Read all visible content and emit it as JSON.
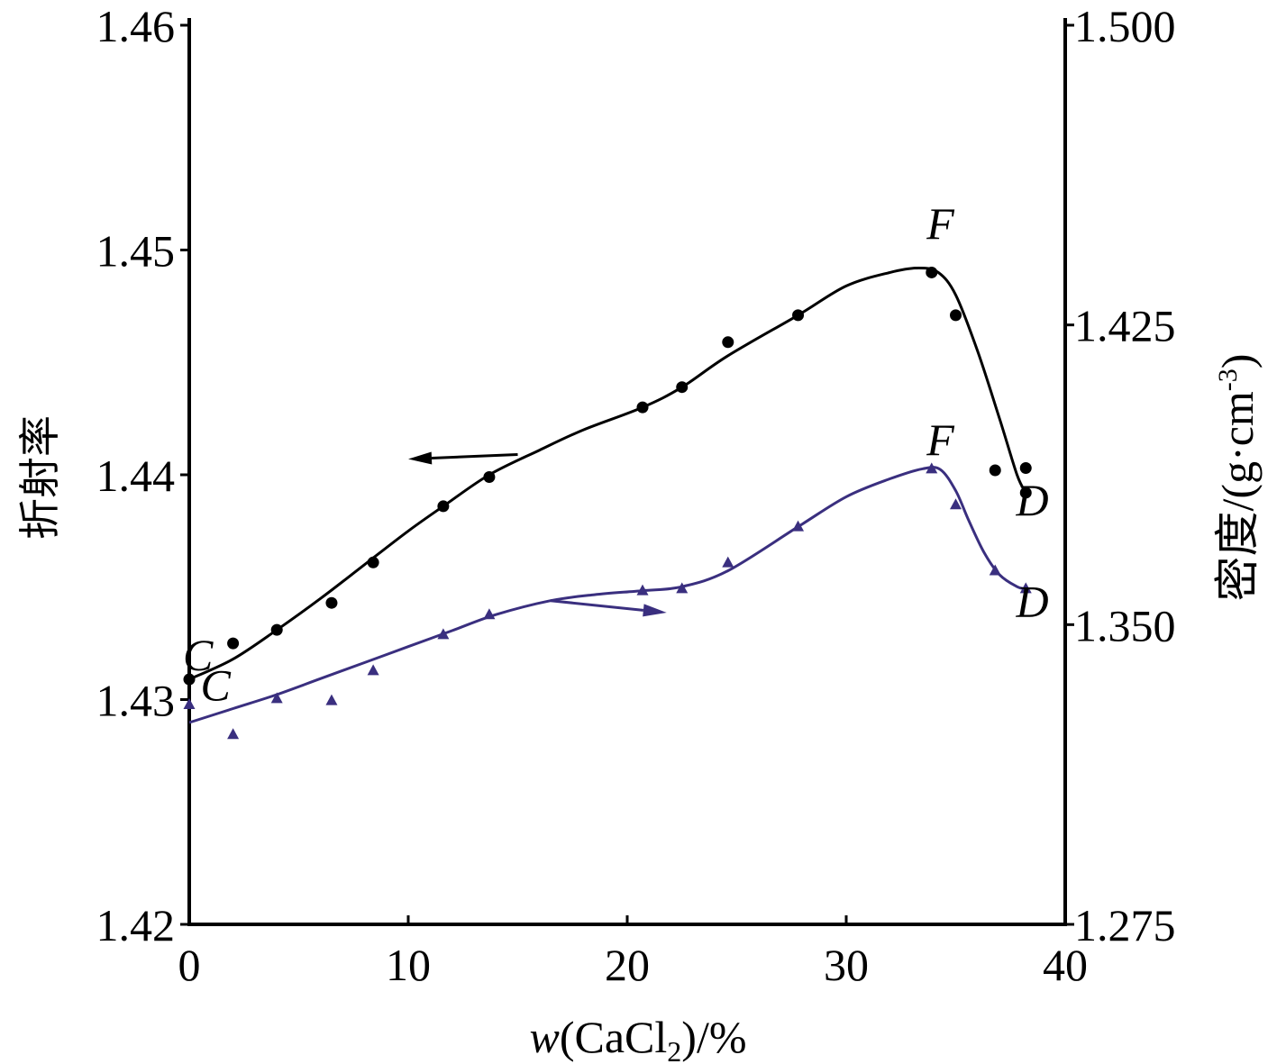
{
  "chart_data": {
    "type": "line",
    "xlabel": {
      "italic": "w",
      "pre": "(CaCl",
      "sub": "2",
      "post": ")/%"
    },
    "ylabel_left": "折射率",
    "ylabel_right": {
      "main": "密度/(g·cm",
      "sup": "-3",
      "close": ")"
    },
    "xlim": [
      0,
      40
    ],
    "ylim_left": [
      1.42,
      1.46
    ],
    "ylim_right": [
      1.275,
      1.5
    ],
    "x_ticks": [
      "0",
      "10",
      "20",
      "30",
      "40"
    ],
    "y_left_ticks": [
      "1.42",
      "1.43",
      "1.44",
      "1.45",
      "1.46"
    ],
    "y_right_ticks": [
      "1.275",
      "1.350",
      "1.425",
      "1.500"
    ],
    "colors": {
      "refractive": "#000000",
      "density": "#3a2f7f"
    },
    "series": [
      {
        "axis": "left",
        "marker": "circle",
        "color": "#000000",
        "points": [
          [
            0,
            1.4309
          ],
          [
            2,
            1.4325
          ],
          [
            4,
            1.4331
          ],
          [
            6.5,
            1.4343
          ],
          [
            8.4,
            1.4361
          ],
          [
            11.6,
            1.4386
          ],
          [
            13.7,
            1.4399
          ],
          [
            20.7,
            1.443
          ],
          [
            22.5,
            1.4439
          ],
          [
            24.6,
            1.4459
          ],
          [
            27.8,
            1.4471
          ],
          [
            33.9,
            1.449
          ],
          [
            35,
            1.4471
          ],
          [
            36.8,
            1.4402
          ],
          [
            38.2,
            1.4403
          ],
          [
            38.2,
            1.4392
          ]
        ],
        "curve": [
          [
            0,
            1.4309
          ],
          [
            2,
            1.4318
          ],
          [
            4,
            1.4331
          ],
          [
            6,
            1.4345
          ],
          [
            8,
            1.436
          ],
          [
            10,
            1.4375
          ],
          [
            11.6,
            1.4386
          ],
          [
            13.7,
            1.44
          ],
          [
            16,
            1.4411
          ],
          [
            18,
            1.442
          ],
          [
            20.7,
            1.443
          ],
          [
            22.5,
            1.4439
          ],
          [
            24.6,
            1.4453
          ],
          [
            27.8,
            1.4471
          ],
          [
            30,
            1.4484
          ],
          [
            32,
            1.449
          ],
          [
            33.3,
            1.4492
          ],
          [
            34.2,
            1.449
          ],
          [
            35,
            1.448
          ],
          [
            36,
            1.4455
          ],
          [
            37,
            1.4425
          ],
          [
            37.8,
            1.44
          ],
          [
            38.2,
            1.4392
          ]
        ]
      },
      {
        "axis": "right",
        "marker": "triangle",
        "color": "#3a2f7f",
        "points": [
          [
            0,
            1.33
          ],
          [
            2,
            1.3225
          ],
          [
            4,
            1.3315
          ],
          [
            6.5,
            1.331
          ],
          [
            8.4,
            1.3385
          ],
          [
            11.6,
            1.3475
          ],
          [
            13.7,
            1.3525
          ],
          [
            20.7,
            1.3585
          ],
          [
            22.5,
            1.359
          ],
          [
            24.6,
            1.3655
          ],
          [
            27.8,
            1.3745
          ],
          [
            33.9,
            1.389
          ],
          [
            35,
            1.38
          ],
          [
            36.8,
            1.3635
          ],
          [
            38.2,
            1.359
          ]
        ],
        "curve": [
          [
            0,
            1.3255
          ],
          [
            2,
            1.329
          ],
          [
            4,
            1.3325
          ],
          [
            6,
            1.3365
          ],
          [
            8,
            1.3405
          ],
          [
            10,
            1.3445
          ],
          [
            12,
            1.3485
          ],
          [
            14,
            1.3525
          ],
          [
            16.5,
            1.356
          ],
          [
            18.5,
            1.3575
          ],
          [
            20.7,
            1.3585
          ],
          [
            22.5,
            1.3595
          ],
          [
            24.6,
            1.3635
          ],
          [
            27.8,
            1.3745
          ],
          [
            30,
            1.382
          ],
          [
            32,
            1.3865
          ],
          [
            33.5,
            1.389
          ],
          [
            34.3,
            1.3888
          ],
          [
            35,
            1.3835
          ],
          [
            35.6,
            1.376
          ],
          [
            36.3,
            1.368
          ],
          [
            37,
            1.3625
          ],
          [
            37.8,
            1.3595
          ],
          [
            38.2,
            1.359
          ]
        ]
      }
    ],
    "annotations": [
      {
        "text": "C",
        "x": 0.4,
        "y": 1.4313,
        "axis": "left"
      },
      {
        "text": "C",
        "x": 1.2,
        "y": 1.331,
        "axis": "right"
      },
      {
        "text": "F",
        "x": 34.3,
        "y": 1.4505,
        "axis": "left"
      },
      {
        "text": "F",
        "x": 34.3,
        "y": 1.3925,
        "axis": "right"
      },
      {
        "text": "D",
        "x": 38.5,
        "y": 1.4382,
        "axis": "left"
      },
      {
        "text": "D",
        "x": 38.5,
        "y": 1.352,
        "axis": "right"
      }
    ],
    "arrows": [
      {
        "from": [
          15,
          1.4409
        ],
        "to": [
          10,
          1.4407
        ],
        "axis": "left",
        "series": 0
      },
      {
        "from": [
          16.5,
          1.356
        ],
        "to": [
          21.8,
          1.353
        ],
        "axis": "right",
        "series": 1
      }
    ]
  }
}
